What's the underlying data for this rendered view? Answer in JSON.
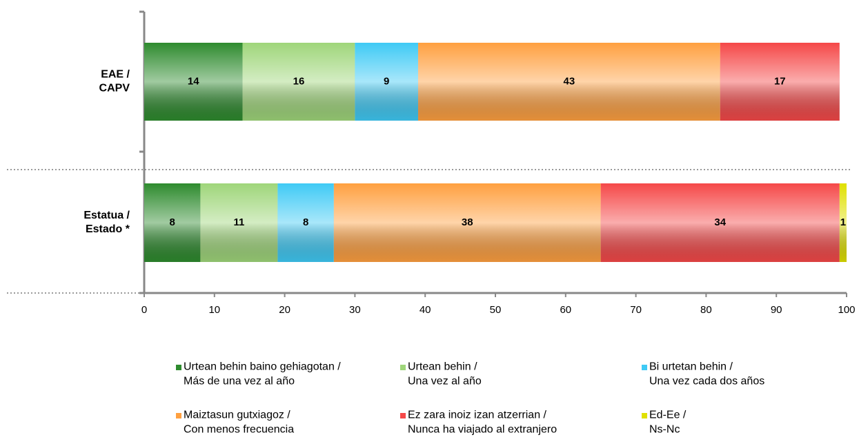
{
  "chart_data": {
    "type": "stacked_barh",
    "categories": [
      "EAE / CAPV",
      "Estatua / Estado *"
    ],
    "series": [
      {
        "name": "Urtean behin baino gehiagotan / Más de una vez al año",
        "color": "#2e8b2e",
        "values": [
          14,
          8
        ]
      },
      {
        "name": "Urtean behin / Una vez al año",
        "color": "#9fd67a",
        "values": [
          16,
          11
        ]
      },
      {
        "name": "Bi urtetan behin / Una vez cada dos años",
        "color": "#3fcaf5",
        "values": [
          9,
          8
        ]
      },
      {
        "name": "Maiztasun gutxiagoz / Con menos frecuencia",
        "color": "#ffa040",
        "values": [
          43,
          38
        ]
      },
      {
        "name": "Ez zara inoiz izan atzerrian / Nunca ha viajado al extranjero",
        "color": "#f54848",
        "values": [
          17,
          34
        ]
      },
      {
        "name": "Ed-Ee / Ns-Nc",
        "color": "#e0e000",
        "values": [
          null,
          1
        ]
      }
    ],
    "xlim": [
      0,
      100
    ],
    "xticks": [
      0,
      10,
      20,
      30,
      40,
      50,
      60,
      70,
      80,
      90,
      100
    ]
  }
}
